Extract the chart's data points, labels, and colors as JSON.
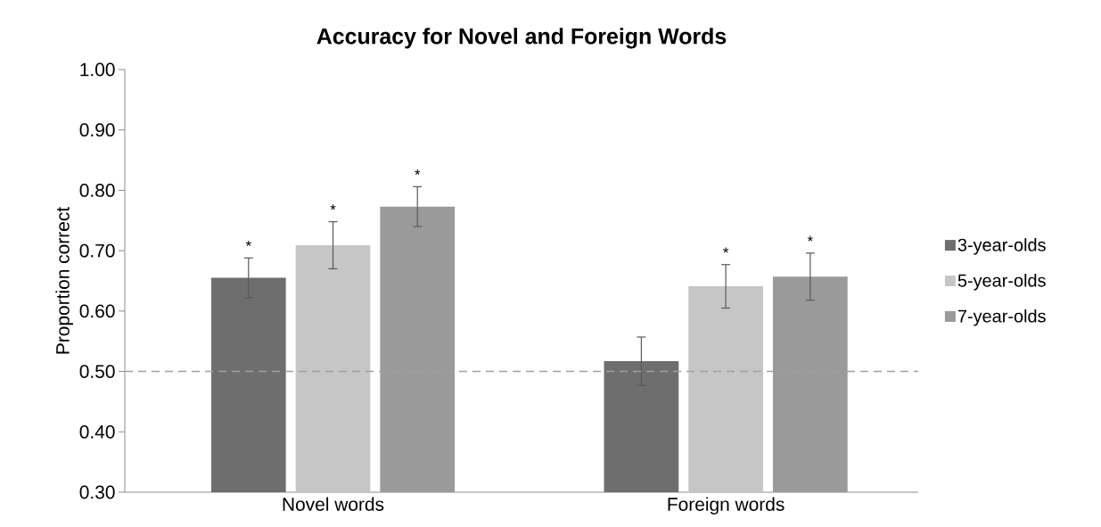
{
  "chart_data": {
    "type": "bar",
    "title": "Accuracy for Novel and Foreign Words",
    "ylabel": "Proportion correct",
    "categories": [
      "Novel words",
      "Foreign words"
    ],
    "series": [
      {
        "name": "3-year-olds",
        "color": "#6e6e6e",
        "values": [
          0.655,
          0.517
        ],
        "errors": [
          0.033,
          0.04
        ],
        "value_labels": [
          "*",
          null
        ]
      },
      {
        "name": "5-year-olds",
        "color": "#c6c6c6",
        "values": [
          0.709,
          0.641
        ],
        "errors": [
          0.039,
          0.036
        ],
        "value_labels": [
          "*",
          "*"
        ]
      },
      {
        "name": "7-year-olds",
        "color": "#9a9a9a",
        "values": [
          0.773,
          0.657
        ],
        "errors": [
          0.033,
          0.039
        ],
        "value_labels": [
          "*",
          "*"
        ]
      }
    ],
    "ylim": [
      0.3,
      1.0
    ],
    "yticks": [
      {
        "value": 0.3,
        "label": "0.30"
      },
      {
        "value": 0.4,
        "label": "0.40"
      },
      {
        "value": 0.5,
        "label": "0.50"
      },
      {
        "value": 0.6,
        "label": "0.60"
      },
      {
        "value": 0.7,
        "label": "0.70"
      },
      {
        "value": 0.8,
        "label": "0.80"
      },
      {
        "value": 0.9,
        "label": "0.90"
      },
      {
        "value": 1.0,
        "label": "1.00"
      }
    ],
    "ref_lines": [
      {
        "axis": "y",
        "value": 0.5,
        "color": "#a0a0a0",
        "line_style": "dashed"
      }
    ],
    "legend": "right",
    "grid": false
  }
}
